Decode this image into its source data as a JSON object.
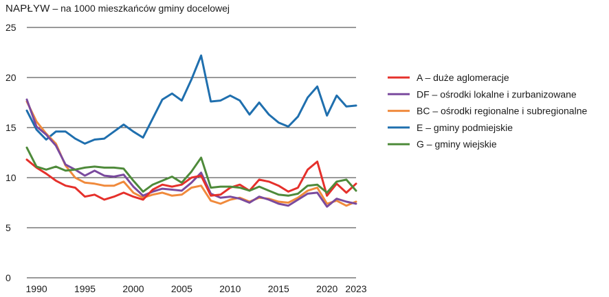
{
  "title": {
    "main": "NAPŁYW",
    "sub": " – na 1000 mieszkańców gminy docelowej"
  },
  "chart_data": {
    "type": "line",
    "title": "NAPŁYW – na 1000 mieszkańców gminy docelowej",
    "xlabel": "",
    "ylabel": "",
    "ylim": [
      0,
      25
    ],
    "xlim": [
      1989,
      2023
    ],
    "y_ticks": [
      0,
      5,
      10,
      15,
      20,
      25
    ],
    "x_ticks": [
      1990,
      1995,
      2000,
      2005,
      2010,
      2015,
      2020,
      2023
    ],
    "grid": "horizontal",
    "legend_position": "right",
    "x": [
      1989,
      1990,
      1991,
      1992,
      1993,
      1994,
      1995,
      1996,
      1997,
      1998,
      1999,
      2000,
      2001,
      2002,
      2003,
      2004,
      2005,
      2006,
      2007,
      2008,
      2009,
      2010,
      2011,
      2012,
      2013,
      2014,
      2015,
      2016,
      2017,
      2018,
      2019,
      2020,
      2021,
      2022,
      2023
    ],
    "series": [
      {
        "name": "A – duże aglomeracje",
        "color": "#e5302b",
        "values": [
          11.8,
          11.0,
          10.4,
          9.7,
          9.2,
          9.0,
          8.1,
          8.3,
          7.8,
          8.1,
          8.5,
          8.1,
          7.8,
          8.8,
          9.3,
          9.1,
          9.3,
          10.0,
          10.2,
          8.2,
          8.3,
          9.0,
          9.3,
          8.7,
          9.8,
          9.6,
          9.2,
          8.6,
          9.0,
          10.8,
          11.6,
          8.2,
          9.4,
          8.5,
          9.4
        ]
      },
      {
        "name": "DF – ośrodki lokalne i zurbanizowane",
        "color": "#7a4a9e",
        "values": [
          17.8,
          15.1,
          14.3,
          13.2,
          11.3,
          10.8,
          10.2,
          10.7,
          10.2,
          10.1,
          10.3,
          9.1,
          8.2,
          8.6,
          8.9,
          8.8,
          8.7,
          9.5,
          10.5,
          8.4,
          8.0,
          8.1,
          7.9,
          7.5,
          8.1,
          7.8,
          7.4,
          7.2,
          7.8,
          8.4,
          8.5,
          7.1,
          7.9,
          7.6,
          7.4
        ]
      },
      {
        "name": "BC – ośrodki regionalne i subregionalne",
        "color": "#f08a3c",
        "values": [
          17.6,
          15.6,
          14.4,
          13.4,
          11.2,
          10.0,
          9.5,
          9.4,
          9.2,
          9.2,
          9.6,
          8.5,
          8.0,
          8.3,
          8.5,
          8.2,
          8.3,
          9.0,
          9.2,
          7.7,
          7.4,
          7.8,
          8.0,
          7.6,
          8.0,
          7.9,
          7.6,
          7.5,
          8.0,
          8.7,
          9.0,
          7.4,
          7.7,
          7.2,
          7.6
        ]
      },
      {
        "name": "E – gminy podmiejskie",
        "color": "#1f6fae",
        "values": [
          16.7,
          14.8,
          13.8,
          14.6,
          14.6,
          13.9,
          13.4,
          13.8,
          13.9,
          14.6,
          15.3,
          14.6,
          14.0,
          15.9,
          17.8,
          18.4,
          17.7,
          19.8,
          22.2,
          17.6,
          17.7,
          18.2,
          17.7,
          16.3,
          17.5,
          16.3,
          15.5,
          15.1,
          16.1,
          18.0,
          19.1,
          16.2,
          18.2,
          17.1,
          17.2
        ]
      },
      {
        "name": "G – gminy wiejskie",
        "color": "#4e8a3a",
        "values": [
          13.0,
          11.1,
          10.8,
          11.1,
          10.7,
          10.8,
          11.0,
          11.1,
          11.0,
          11.0,
          10.9,
          9.7,
          8.6,
          9.3,
          9.7,
          10.1,
          9.5,
          10.6,
          12.0,
          9.0,
          9.1,
          9.1,
          9.0,
          8.7,
          9.1,
          8.7,
          8.3,
          8.2,
          8.4,
          9.2,
          9.3,
          8.5,
          9.6,
          9.8,
          8.7
        ]
      }
    ]
  }
}
